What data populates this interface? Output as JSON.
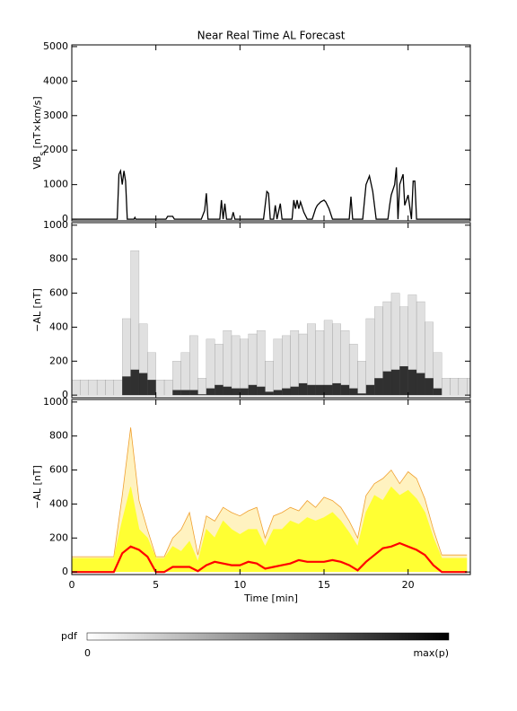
{
  "chart_data": [
    {
      "type": "line",
      "title": "Near Real Time AL Forecast",
      "ylabel": [
        "VB",
        "s",
        " [nT×km/s]"
      ],
      "x": [
        0,
        2.7,
        2.8,
        2.9,
        3.0,
        3.1,
        3.2,
        3.3,
        3.7,
        3.75,
        3.8,
        5.6,
        5.7,
        6.0,
        6.1,
        7.7,
        7.9,
        8.0,
        8.1,
        8.8,
        8.9,
        9.0,
        9.1,
        9.2,
        9.5,
        9.6,
        9.7,
        11.4,
        11.6,
        11.7,
        11.8,
        12.0,
        12.1,
        12.2,
        12.4,
        12.5,
        13.1,
        13.2,
        13.3,
        13.4,
        13.5,
        13.6,
        13.8,
        14.0,
        14.3,
        14.5,
        14.6,
        14.8,
        15.0,
        15.1,
        15.3,
        15.5,
        16.5,
        16.6,
        16.7,
        17.3,
        17.5,
        17.7,
        17.9,
        18.1,
        18.8,
        18.9,
        19.0,
        19.2,
        19.3,
        19.4,
        19.5,
        19.7,
        19.8,
        20.0,
        20.2,
        20.3,
        20.4,
        20.5,
        23.7
      ],
      "series": [
        {
          "color": "#000000",
          "values": [
            0,
            0,
            1300,
            1400,
            1000,
            1400,
            1100,
            0,
            0,
            50,
            0,
            0,
            80,
            80,
            0,
            0,
            250,
            750,
            0,
            0,
            550,
            0,
            450,
            0,
            0,
            200,
            0,
            0,
            800,
            750,
            0,
            0,
            400,
            0,
            450,
            0,
            0,
            550,
            300,
            550,
            300,
            500,
            200,
            0,
            0,
            300,
            400,
            500,
            550,
            500,
            300,
            0,
            0,
            650,
            0,
            0,
            1000,
            1250,
            800,
            0,
            0,
            400,
            700,
            1000,
            1500,
            0,
            1000,
            1300,
            400,
            700,
            0,
            1100,
            1100,
            0,
            0
          ]
        }
      ],
      "xlim": [
        0,
        23.7
      ],
      "xticks": [
        0,
        5,
        10,
        15,
        20
      ],
      "ylim": [
        -50,
        5050
      ],
      "yticks": [
        0,
        1000,
        2000,
        3000,
        4000,
        5000
      ]
    },
    {
      "type": "heatmap",
      "ylabel": "−AL [nT]",
      "x": [
        0,
        0.5,
        1,
        1.5,
        2,
        2.5,
        3,
        3.5,
        4,
        4.5,
        5,
        5.5,
        6,
        6.5,
        7,
        7.5,
        8,
        8.5,
        9,
        9.5,
        10,
        10.5,
        11,
        11.5,
        12,
        12.5,
        13,
        13.5,
        14,
        14.5,
        15,
        15.5,
        16,
        16.5,
        17,
        17.5,
        18,
        18.5,
        19,
        19.5,
        20,
        20.5,
        21,
        21.5,
        22,
        22.5,
        23,
        23.5
      ],
      "series": [
        {
          "color": "#bbbbbb",
          "values": [
            90,
            90,
            90,
            90,
            90,
            90,
            450,
            850,
            420,
            250,
            90,
            90,
            200,
            250,
            350,
            100,
            330,
            300,
            380,
            350,
            330,
            360,
            380,
            200,
            330,
            350,
            380,
            360,
            420,
            380,
            440,
            420,
            380,
            300,
            200,
            450,
            520,
            550,
            600,
            520,
            590,
            550,
            430,
            250,
            100,
            100,
            100,
            100
          ]
        },
        {
          "color": "#111111",
          "values": [
            0,
            0,
            0,
            0,
            0,
            0,
            110,
            150,
            130,
            90,
            0,
            0,
            30,
            30,
            30,
            5,
            40,
            60,
            50,
            40,
            40,
            60,
            50,
            20,
            30,
            40,
            50,
            70,
            60,
            60,
            60,
            70,
            60,
            40,
            10,
            60,
            100,
            140,
            150,
            170,
            150,
            130,
            100,
            40,
            0,
            0,
            0,
            0
          ]
        }
      ],
      "xlim": [
        0,
        23.7
      ],
      "xticks": [
        0,
        5,
        10,
        15,
        20
      ],
      "ylim": [
        -15,
        1015
      ],
      "yticks": [
        0,
        200,
        400,
        600,
        800,
        1000
      ]
    },
    {
      "type": "quantile",
      "ylabel": "−AL [nT]",
      "xlabel": "Time [min]",
      "x": [
        0,
        0.5,
        1,
        1.5,
        2,
        2.5,
        3,
        3.5,
        4,
        4.5,
        5,
        5.5,
        6,
        6.5,
        7,
        7.5,
        8,
        8.5,
        9,
        9.5,
        10,
        10.5,
        11,
        11.5,
        12,
        12.5,
        13,
        13.5,
        14,
        14.5,
        15,
        15.5,
        16,
        16.5,
        17,
        17.5,
        18,
        18.5,
        19,
        19.5,
        20,
        20.5,
        21,
        21.5,
        22,
        22.5,
        23,
        23.5
      ],
      "series": [
        {
          "color": "#f0a030",
          "values": [
            90,
            90,
            90,
            90,
            90,
            90,
            450,
            850,
            420,
            250,
            90,
            90,
            200,
            250,
            350,
            100,
            330,
            300,
            380,
            350,
            330,
            360,
            380,
            200,
            330,
            350,
            380,
            360,
            420,
            380,
            440,
            420,
            380,
            300,
            200,
            450,
            520,
            550,
            600,
            520,
            590,
            550,
            430,
            250,
            100,
            100,
            100,
            100
          ]
        },
        {
          "color": "#ffff33",
          "values": [
            80,
            80,
            80,
            80,
            80,
            80,
            300,
            500,
            250,
            200,
            80,
            80,
            150,
            120,
            180,
            60,
            250,
            200,
            300,
            250,
            220,
            250,
            250,
            150,
            250,
            250,
            300,
            280,
            320,
            300,
            320,
            350,
            300,
            230,
            150,
            350,
            450,
            420,
            500,
            450,
            480,
            430,
            350,
            200,
            80,
            80,
            80,
            80
          ]
        },
        {
          "color": "#ff0000",
          "values": [
            0,
            0,
            0,
            0,
            0,
            0,
            110,
            150,
            130,
            90,
            0,
            0,
            30,
            30,
            30,
            5,
            40,
            60,
            50,
            40,
            40,
            60,
            50,
            20,
            30,
            40,
            50,
            70,
            60,
            60,
            60,
            70,
            60,
            40,
            10,
            60,
            100,
            140,
            150,
            170,
            150,
            130,
            100,
            40,
            0,
            0,
            0,
            0
          ]
        }
      ],
      "xlim": [
        0,
        23.7
      ],
      "xticks": [
        0,
        5,
        10,
        15,
        20
      ],
      "ylim": [
        -15,
        1015
      ],
      "yticks": [
        0,
        200,
        400,
        600,
        800,
        1000
      ]
    }
  ],
  "colorbar": {
    "label": "pdf",
    "min_label": "0",
    "max_label": "max(p)"
  }
}
